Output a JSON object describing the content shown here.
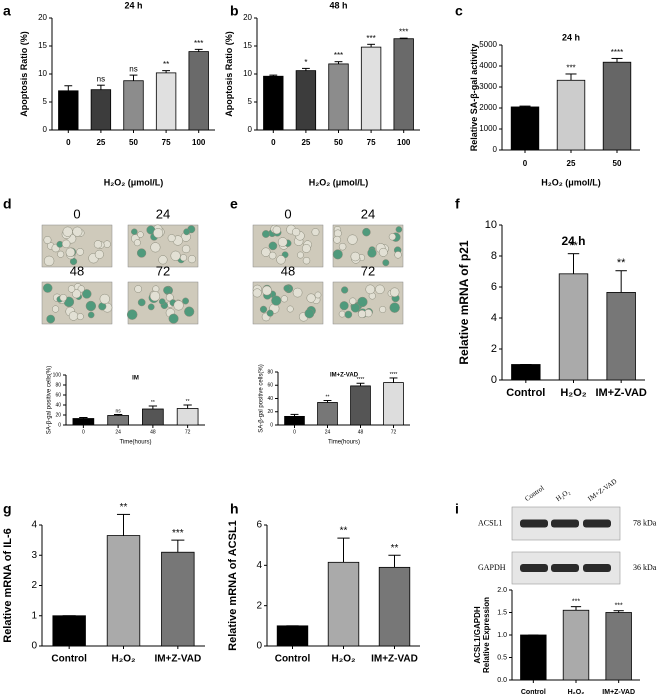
{
  "chart_data": [
    {
      "type": "bar",
      "title": "24 h",
      "categories": [
        "0",
        "25",
        "50",
        "75",
        "100"
      ],
      "values": [
        7,
        7.2,
        8.8,
        10.2,
        14
      ],
      "errors": [
        0.9,
        0.8,
        1.0,
        0.4,
        0.4
      ],
      "annotations": [
        null,
        "ns",
        "ns",
        "**",
        "***"
      ],
      "colors": [
        "#000000",
        "#3c3c3c",
        "#8c8c8c",
        "#e0e0e0",
        "#6a6a6a"
      ],
      "ylabel": "Apoptosis Ratio (%)",
      "xlabel": "H₂O₂ (μmol/L)",
      "ylim": [
        0,
        20
      ],
      "yticks": [
        0,
        5,
        10,
        15,
        20
      ]
    },
    {
      "type": "bar",
      "title": "48 h",
      "categories": [
        "0",
        "25",
        "50",
        "75",
        "100"
      ],
      "values": [
        9.6,
        10.6,
        11.8,
        14.8,
        16.3
      ],
      "errors": [
        0.2,
        0.4,
        0.4,
        0.5,
        0.1
      ],
      "annotations": [
        null,
        "*",
        "***",
        "***",
        "***"
      ],
      "colors": [
        "#000000",
        "#3c3c3c",
        "#8c8c8c",
        "#e0e0e0",
        "#6a6a6a"
      ],
      "ylabel": "Apoptosis Ratio (%)",
      "xlabel": "H₂O₂ (μmol/L)",
      "ylim": [
        0,
        20
      ],
      "yticks": [
        0,
        5,
        10,
        15,
        20
      ]
    },
    {
      "type": "bar",
      "title": "24 h",
      "categories": [
        "0",
        "25",
        "50"
      ],
      "values": [
        2050,
        3320,
        4180
      ],
      "errors": [
        40,
        300,
        180
      ],
      "annotations": [
        null,
        "***",
        "****"
      ],
      "colors": [
        "#000000",
        "#cccccc",
        "#666666"
      ],
      "ylabel": "Relative SA-β-gal activity",
      "xlabel": "H₂O₂ (μmol/L)",
      "ylim": [
        0,
        5000
      ],
      "yticks": [
        0,
        1000,
        2000,
        3000,
        4000,
        5000
      ]
    },
    {
      "type": "bar",
      "title": "IM",
      "categories": [
        "0",
        "24",
        "48",
        "72"
      ],
      "values": [
        13,
        19,
        32,
        33
      ],
      "errors": [
        2,
        2,
        6,
        7
      ],
      "annotations": [
        null,
        "ns",
        "**",
        "**"
      ],
      "colors": [
        "#000000",
        "#777777",
        "#555555",
        "#dddddd"
      ],
      "ylabel": "SA-β-gal positive cells(%)",
      "xlabel": "Time(hours)",
      "ylim": [
        0,
        100
      ],
      "yticks": [
        0,
        20,
        40,
        60,
        80,
        100
      ]
    },
    {
      "type": "bar",
      "title": "IM+Z-VAD",
      "categories": [
        "0",
        "24",
        "48",
        "72"
      ],
      "values": [
        13,
        34,
        59,
        64
      ],
      "errors": [
        3,
        3,
        4,
        7
      ],
      "annotations": [
        null,
        "**",
        "****",
        "****"
      ],
      "colors": [
        "#000000",
        "#777777",
        "#555555",
        "#dddddd"
      ],
      "ylabel": "SA-β-gal positive cells(%)",
      "xlabel": "Time(hours)",
      "ylim": [
        0,
        80
      ],
      "yticks": [
        0,
        20,
        40,
        60,
        80
      ]
    },
    {
      "type": "bar",
      "title": "24 h",
      "categories": [
        "Control",
        "H₂O₂",
        "IM+Z-VAD"
      ],
      "values": [
        1,
        6.85,
        5.65
      ],
      "errors": [
        0,
        1.3,
        1.4
      ],
      "annotations": [
        null,
        "**",
        "**"
      ],
      "colors": [
        "#000000",
        "#aaaaaa",
        "#777777"
      ],
      "ylabel": "Relative mRNA of p21",
      "ylim": [
        0,
        10
      ],
      "yticks": [
        0,
        2,
        4,
        6,
        8,
        10
      ]
    },
    {
      "type": "bar",
      "categories": [
        "Control",
        "H₂O₂",
        "IM+Z-VAD"
      ],
      "values": [
        1,
        3.65,
        3.1
      ],
      "errors": [
        0,
        0.7,
        0.4
      ],
      "annotations": [
        null,
        "**",
        "***"
      ],
      "colors": [
        "#000000",
        "#aaaaaa",
        "#777777"
      ],
      "ylabel": "Relative mRNA of IL-6",
      "ylim": [
        0,
        4
      ],
      "yticks": [
        0,
        1,
        2,
        3,
        4
      ]
    },
    {
      "type": "bar",
      "categories": [
        "Control",
        "H₂O₂",
        "IM+Z-VAD"
      ],
      "values": [
        1,
        4.15,
        3.9
      ],
      "errors": [
        0,
        1.2,
        0.6
      ],
      "annotations": [
        null,
        "**",
        "**"
      ],
      "colors": [
        "#000000",
        "#aaaaaa",
        "#777777"
      ],
      "ylabel": "Relative mRNA of ACSL1",
      "ylim": [
        0,
        6
      ],
      "yticks": [
        0,
        2,
        4,
        6
      ]
    },
    {
      "type": "bar",
      "categories": [
        "Control",
        "H₂O₂",
        "IM+Z-VAD"
      ],
      "values": [
        1,
        1.55,
        1.5
      ],
      "errors": [
        0,
        0.08,
        0.04
      ],
      "annotations": [
        null,
        "***",
        "***"
      ],
      "colors": [
        "#000000",
        "#aaaaaa",
        "#777777"
      ],
      "ylabel_lines": [
        "ACSL1/GAPDH",
        "Relative Expression"
      ],
      "ylim": [
        0,
        2
      ],
      "yticks": [
        {
          "value": 0,
          "label": "0.0"
        },
        {
          "value": 0.5,
          "label": "0.5"
        },
        {
          "value": 1,
          "label": "1.0"
        },
        {
          "value": 1.5,
          "label": "1.5"
        },
        {
          "value": 2,
          "label": "2.0"
        }
      ]
    }
  ],
  "figure": {
    "letters": [
      "a",
      "b",
      "c",
      "d",
      "e",
      "f",
      "g",
      "h",
      "i"
    ],
    "image_labels": {
      "d": [
        "0",
        "24",
        "48",
        "72"
      ],
      "e": [
        "0",
        "24",
        "48",
        "72"
      ]
    },
    "blot": {
      "lanes": [
        "Control",
        "H₂O₂",
        "IM+Z-VAD"
      ],
      "proteins": [
        "ACSL1",
        "GAPDH"
      ],
      "sizes": [
        "78 kDa",
        "36 kDa"
      ]
    }
  }
}
